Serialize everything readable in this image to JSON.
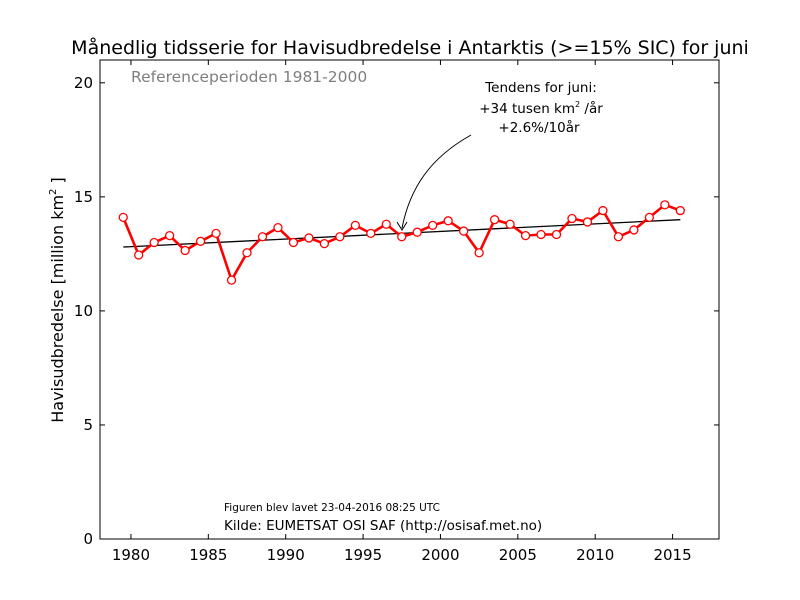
{
  "chart_data": {
    "type": "line",
    "title": "Månedlig tidsserie for Havisudbredelse i Antarktis (>=15% SIC) for juni",
    "ylabel_main": "Havisudbredelse [million km",
    "ylabel_sup": "2",
    "ylabel_end": " ]",
    "xlim": [
      1978,
      2018
    ],
    "ylim": [
      0,
      21
    ],
    "x_ticks": [
      1980,
      1985,
      1990,
      1995,
      2000,
      2005,
      2010,
      2015
    ],
    "y_ticks": [
      0,
      5,
      10,
      15,
      20
    ],
    "reference_period": "Referenceperioden 1981-2000",
    "annotation": {
      "line1": "Tendens for juni:",
      "line2_prefix": "+34 tusen km",
      "line2_sup": "2",
      "line2_suffix": " /år",
      "line3": "+2.6%/10år"
    },
    "footer_created": "Figuren blev lavet 23-04-2016 08:25 UTC",
    "footer_source": "Kilde: EUMETSAT OSI SAF (http://osisaf.met.no)",
    "series": [
      {
        "color": "#ff0000",
        "x": [
          1979.5,
          1980.5,
          1981.5,
          1982.5,
          1983.5,
          1984.5,
          1985.5,
          1986.5,
          1987.5,
          1988.5,
          1989.5,
          1990.5,
          1991.5,
          1992.5,
          1993.5,
          1994.5,
          1995.5,
          1996.5,
          1997.5,
          1998.5,
          1999.5,
          2000.5,
          2001.5,
          2002.5,
          2003.5,
          2004.5,
          2005.5,
          2006.5,
          2007.5,
          2008.5,
          2009.5,
          2010.5,
          2011.5,
          2012.5,
          2013.5,
          2014.5,
          2015.5
        ],
        "values": [
          14.1,
          12.45,
          13.0,
          13.3,
          12.65,
          13.05,
          13.4,
          11.35,
          12.55,
          13.25,
          13.65,
          13.0,
          13.2,
          12.95,
          13.25,
          13.75,
          13.4,
          13.8,
          13.25,
          13.45,
          13.75,
          13.95,
          13.5,
          12.55,
          14.0,
          13.8,
          13.3,
          13.35,
          13.35,
          14.05,
          13.9,
          14.4,
          13.25,
          13.55,
          14.1,
          14.65,
          14.4
        ]
      }
    ],
    "trend": {
      "color": "#000000",
      "x": [
        1979.5,
        2015.5
      ],
      "values": [
        12.8,
        14.0
      ]
    }
  }
}
